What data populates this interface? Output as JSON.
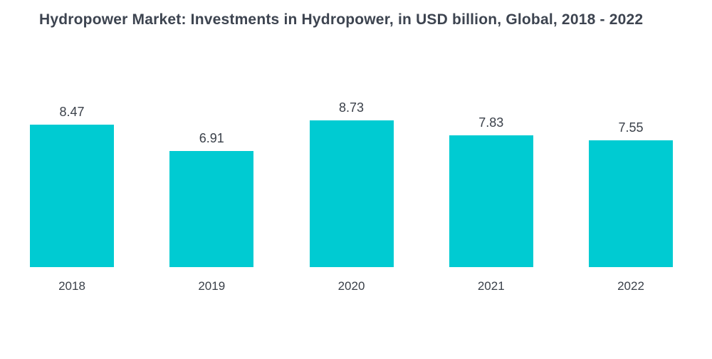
{
  "chart_data": {
    "type": "bar",
    "title": "Hydropower Market: Investments in Hydropower, in USD billion, Global, 2018 - 2022",
    "categories": [
      "2018",
      "2019",
      "2020",
      "2021",
      "2022"
    ],
    "values": [
      8.47,
      6.91,
      8.73,
      7.83,
      7.55
    ],
    "value_labels": [
      "8.47",
      "6.91",
      "8.73",
      "7.83",
      "7.55"
    ],
    "xlabel": "",
    "ylabel": "",
    "ylim": [
      0,
      9
    ],
    "grid": false,
    "legend": "none",
    "bar_color": "#00cbd2",
    "text_color": "#3a4049",
    "title_color": "#3d4450",
    "background_color": "#ffffff"
  }
}
